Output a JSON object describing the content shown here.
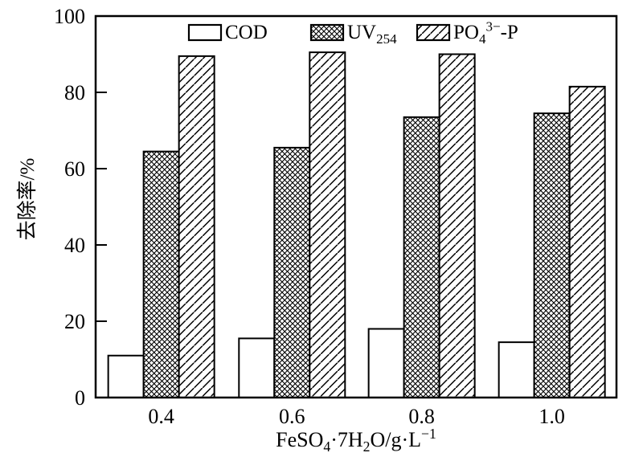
{
  "figure": {
    "background": "#ffffff",
    "stroke_color": "#000000"
  },
  "chart_data": {
    "type": "bar",
    "title": "",
    "categories": [
      "0.4",
      "0.6",
      "0.8",
      "1.0"
    ],
    "series": [
      {
        "name": "COD",
        "pattern": "plain",
        "values": [
          11,
          15.5,
          18,
          14.5
        ],
        "label_parts": [
          {
            "t": "COD"
          }
        ]
      },
      {
        "name": "UV254",
        "pattern": "crosshatch",
        "values": [
          64.5,
          65.5,
          73.5,
          74.5
        ],
        "label_parts": [
          {
            "t": "UV"
          },
          {
            "t": "254",
            "s": "sub"
          }
        ]
      },
      {
        "name": "PO4-3minus-P",
        "pattern": "diagonal-up",
        "values": [
          89.5,
          90.5,
          90,
          81.5
        ],
        "label_parts": [
          {
            "t": "PO"
          },
          {
            "t": "4",
            "s": "sub"
          },
          {
            "t": "3−",
            "s": "sup"
          },
          {
            "t": "-P"
          }
        ]
      }
    ],
    "xlabel": "FeSO4·7H2O/g·L−1",
    "xlabel_parts": [
      {
        "t": "FeSO"
      },
      {
        "t": "4",
        "s": "sub"
      },
      {
        "t": "·7H"
      },
      {
        "t": "2",
        "s": "sub"
      },
      {
        "t": "O/g·L"
      },
      {
        "t": "−1",
        "s": "sup"
      }
    ],
    "ylabel": "去除率/%",
    "ylim": [
      0,
      100
    ],
    "yticks": [
      "0",
      "20",
      "40",
      "60",
      "80",
      "100"
    ],
    "grid": false,
    "legend_position": "top-inside-horizontal",
    "bar_style": {
      "fill": "#ffffff",
      "stroke": "#000000"
    }
  }
}
